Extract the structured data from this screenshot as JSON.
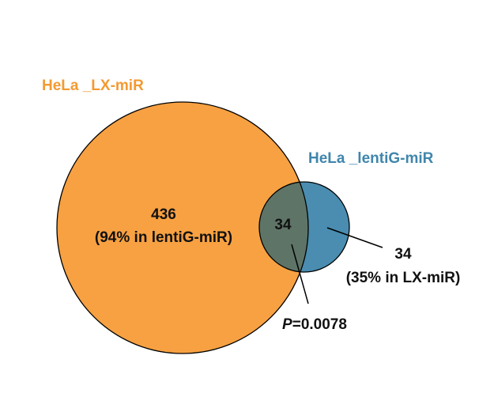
{
  "colors": {
    "set_a": "#F7A142",
    "set_b": "#4A8DB0",
    "overlap": "#5E7467",
    "outline": "#000000",
    "label_a": "#F39A32",
    "label_b": "#3F86AC",
    "text": "#111111"
  },
  "sets": {
    "a": {
      "name": "HeLa _LX-miR",
      "count_label": "436",
      "count_note": "(94% in lentiG-miR)"
    },
    "b": {
      "name": "HeLa _lentiG-miR",
      "count_label": "34",
      "count_note": "(35% in LX-miR)"
    }
  },
  "intersection": {
    "count_label": "34"
  },
  "stat": {
    "p_symbol": "P",
    "p_value": "=0.0078"
  }
}
